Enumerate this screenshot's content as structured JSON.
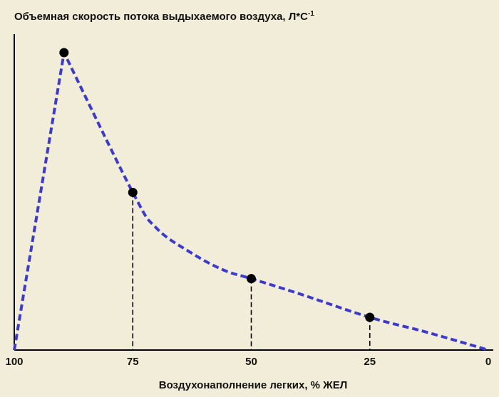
{
  "chart_data": {
    "type": "line",
    "title": "Объемная скорость потока выдыхаемого воздуха, Л*С",
    "title_superscript": "-1",
    "xlabel": "Воздухонаполнение легких, % ЖЕЛ",
    "ylabel": "",
    "x_reversed": true,
    "xlim": [
      100,
      0
    ],
    "x_ticks": [
      "100",
      "75",
      "50",
      "25",
      "0"
    ],
    "ylim": [
      0,
      100
    ],
    "y_ticks_shown": false,
    "grid": false,
    "series": [
      {
        "color": "#3b3bd0",
        "line_style": "dashed",
        "x": [
          100,
          89.5,
          75,
          70,
          63,
          56,
          50,
          40,
          25,
          13,
          0
        ],
        "y": [
          0,
          100,
          53,
          41,
          33,
          27,
          24,
          19,
          11,
          6,
          0
        ]
      }
    ],
    "markers": [
      {
        "x": 89.5,
        "y": 100
      },
      {
        "x": 75,
        "y": 53
      },
      {
        "x": 50,
        "y": 24
      },
      {
        "x": 25,
        "y": 11
      }
    ],
    "drop_lines_at_x": [
      75,
      50,
      25
    ],
    "marker_color": "#000000",
    "axis_color": "#000000"
  }
}
